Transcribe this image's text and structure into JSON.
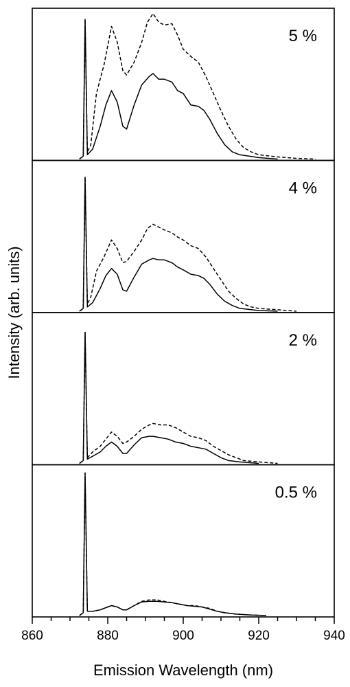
{
  "chart_data": {
    "type": "line",
    "xlabel": "Emission Wavelength (nm)",
    "ylabel": "Intensity (arb. units)",
    "xlim": [
      860,
      940
    ],
    "x_ticks": [
      "860",
      "880",
      "900",
      "920",
      "940"
    ],
    "x_minor_step": 5,
    "line_styles": [
      "dashed",
      "solid"
    ],
    "grid": false,
    "panels": [
      {
        "label": "5 %",
        "series": [
          {
            "style": "dashed",
            "points": [
              [
                872.5,
                0
              ],
              [
                873.5,
                0.02
              ],
              [
                874,
                0.98
              ],
              [
                874.6,
                0.05
              ],
              [
                875.5,
                0.1
              ],
              [
                877,
                0.46
              ],
              [
                879,
                0.66
              ],
              [
                881,
                0.93
              ],
              [
                882.5,
                0.82
              ],
              [
                884,
                0.62
              ],
              [
                885,
                0.59
              ],
              [
                887,
                0.68
              ],
              [
                889,
                0.82
              ],
              [
                890.5,
                0.96
              ],
              [
                892,
                1.02
              ],
              [
                893.5,
                0.96
              ],
              [
                895,
                0.94
              ],
              [
                897,
                0.95
              ],
              [
                898.5,
                0.87
              ],
              [
                900,
                0.77
              ],
              [
                902,
                0.72
              ],
              [
                904,
                0.68
              ],
              [
                906,
                0.58
              ],
              [
                908,
                0.46
              ],
              [
                910,
                0.34
              ],
              [
                912,
                0.23
              ],
              [
                914,
                0.14
              ],
              [
                916,
                0.08
              ],
              [
                918,
                0.05
              ],
              [
                920,
                0.03
              ],
              [
                925,
                0.015
              ],
              [
                930,
                0.005
              ],
              [
                935,
                0
              ]
            ]
          },
          {
            "style": "solid",
            "points": [
              [
                872.5,
                0
              ],
              [
                873.5,
                0.02
              ],
              [
                874,
                0.98
              ],
              [
                874.6,
                0.03
              ],
              [
                876,
                0.07
              ],
              [
                878,
                0.23
              ],
              [
                879.5,
                0.38
              ],
              [
                881,
                0.48
              ],
              [
                882.5,
                0.4
              ],
              [
                884,
                0.23
              ],
              [
                885,
                0.21
              ],
              [
                887,
                0.38
              ],
              [
                889,
                0.52
              ],
              [
                891,
                0.58
              ],
              [
                892,
                0.6
              ],
              [
                893.5,
                0.56
              ],
              [
                895,
                0.56
              ],
              [
                897,
                0.54
              ],
              [
                898.5,
                0.48
              ],
              [
                900,
                0.46
              ],
              [
                902,
                0.38
              ],
              [
                904,
                0.37
              ],
              [
                905.5,
                0.34
              ],
              [
                907,
                0.28
              ],
              [
                909,
                0.18
              ],
              [
                911,
                0.1
              ],
              [
                913,
                0.05
              ],
              [
                915,
                0.03
              ],
              [
                920,
                0.01
              ],
              [
                925,
                0
              ]
            ]
          }
        ]
      },
      {
        "label": "4 %",
        "series": [
          {
            "style": "dashed",
            "points": [
              [
                872.5,
                0
              ],
              [
                873.5,
                0.02
              ],
              [
                874,
                0.94
              ],
              [
                874.6,
                0.05
              ],
              [
                875.5,
                0.1
              ],
              [
                877,
                0.28
              ],
              [
                879,
                0.38
              ],
              [
                881,
                0.5
              ],
              [
                882.5,
                0.44
              ],
              [
                884,
                0.34
              ],
              [
                885,
                0.35
              ],
              [
                887,
                0.42
              ],
              [
                889,
                0.5
              ],
              [
                890.5,
                0.58
              ],
              [
                892,
                0.61
              ],
              [
                893.5,
                0.59
              ],
              [
                895,
                0.57
              ],
              [
                897,
                0.55
              ],
              [
                898.5,
                0.52
              ],
              [
                900,
                0.5
              ],
              [
                902,
                0.46
              ],
              [
                904,
                0.44
              ],
              [
                906,
                0.38
              ],
              [
                908,
                0.3
              ],
              [
                910,
                0.22
              ],
              [
                912,
                0.14
              ],
              [
                914,
                0.09
              ],
              [
                916,
                0.05
              ],
              [
                918,
                0.03
              ],
              [
                920,
                0.02
              ],
              [
                925,
                0.01
              ],
              [
                930,
                0
              ]
            ]
          },
          {
            "style": "solid",
            "points": [
              [
                872.5,
                0
              ],
              [
                873.5,
                0.02
              ],
              [
                874,
                0.94
              ],
              [
                874.6,
                0.03
              ],
              [
                876,
                0.06
              ],
              [
                878,
                0.16
              ],
              [
                879.5,
                0.25
              ],
              [
                881,
                0.3
              ],
              [
                882.5,
                0.26
              ],
              [
                884,
                0.15
              ],
              [
                885,
                0.14
              ],
              [
                887,
                0.24
              ],
              [
                889,
                0.33
              ],
              [
                891,
                0.36
              ],
              [
                892,
                0.37
              ],
              [
                893.5,
                0.36
              ],
              [
                895,
                0.36
              ],
              [
                897,
                0.34
              ],
              [
                898.5,
                0.31
              ],
              [
                900,
                0.29
              ],
              [
                902,
                0.26
              ],
              [
                904,
                0.25
              ],
              [
                905.5,
                0.23
              ],
              [
                907,
                0.19
              ],
              [
                909,
                0.12
              ],
              [
                911,
                0.07
              ],
              [
                913,
                0.04
              ],
              [
                915,
                0.02
              ],
              [
                920,
                0.005
              ],
              [
                925,
                0
              ]
            ]
          }
        ]
      },
      {
        "label": "2 %",
        "series": [
          {
            "style": "dashed",
            "points": [
              [
                872.5,
                0
              ],
              [
                873.5,
                0.02
              ],
              [
                874,
                0.92
              ],
              [
                874.6,
                0.04
              ],
              [
                876,
                0.08
              ],
              [
                878,
                0.12
              ],
              [
                879.5,
                0.17
              ],
              [
                881,
                0.22
              ],
              [
                882.5,
                0.19
              ],
              [
                884,
                0.14
              ],
              [
                885,
                0.15
              ],
              [
                887,
                0.19
              ],
              [
                889,
                0.24
              ],
              [
                891,
                0.27
              ],
              [
                892,
                0.28
              ],
              [
                894,
                0.27
              ],
              [
                896,
                0.27
              ],
              [
                898,
                0.25
              ],
              [
                900,
                0.22
              ],
              [
                902,
                0.19
              ],
              [
                904,
                0.18
              ],
              [
                906,
                0.16
              ],
              [
                908,
                0.12
              ],
              [
                910,
                0.09
              ],
              [
                912,
                0.06
              ],
              [
                914,
                0.04
              ],
              [
                916,
                0.02
              ],
              [
                920,
                0.01
              ],
              [
                925,
                0
              ]
            ]
          },
          {
            "style": "solid",
            "points": [
              [
                872.5,
                0
              ],
              [
                873.5,
                0.02
              ],
              [
                874,
                0.92
              ],
              [
                874.6,
                0.03
              ],
              [
                876,
                0.05
              ],
              [
                878,
                0.08
              ],
              [
                879.5,
                0.12
              ],
              [
                881,
                0.15
              ],
              [
                882.5,
                0.12
              ],
              [
                884,
                0.07
              ],
              [
                885,
                0.07
              ],
              [
                887,
                0.13
              ],
              [
                889,
                0.18
              ],
              [
                891,
                0.19
              ],
              [
                892,
                0.19
              ],
              [
                894,
                0.18
              ],
              [
                896,
                0.17
              ],
              [
                898,
                0.15
              ],
              [
                900,
                0.14
              ],
              [
                902,
                0.12
              ],
              [
                904,
                0.11
              ],
              [
                906,
                0.1
              ],
              [
                908,
                0.07
              ],
              [
                910,
                0.04
              ],
              [
                912,
                0.02
              ],
              [
                915,
                0.01
              ],
              [
                920,
                0
              ]
            ]
          }
        ]
      },
      {
        "label": "0.5 %",
        "series": [
          {
            "style": "dashed",
            "points": [
              [
                872.5,
                0
              ],
              [
                873.5,
                0.02
              ],
              [
                874,
                1.0
              ],
              [
                874.6,
                0.03
              ],
              [
                876,
                0.03
              ],
              [
                878,
                0.04
              ],
              [
                880,
                0.06
              ],
              [
                881,
                0.07
              ],
              [
                882.5,
                0.06
              ],
              [
                884,
                0.04
              ],
              [
                885,
                0.04
              ],
              [
                887,
                0.07
              ],
              [
                889,
                0.1
              ],
              [
                891,
                0.11
              ],
              [
                893,
                0.11
              ],
              [
                895,
                0.1
              ],
              [
                897,
                0.09
              ],
              [
                899,
                0.08
              ],
              [
                901,
                0.07
              ],
              [
                903,
                0.07
              ],
              [
                905,
                0.06
              ],
              [
                907,
                0.05
              ],
              [
                909,
                0.03
              ],
              [
                911,
                0.02
              ],
              [
                914,
                0.01
              ],
              [
                918,
                0.004
              ],
              [
                922,
                0
              ]
            ]
          },
          {
            "style": "solid",
            "points": [
              [
                872.5,
                0
              ],
              [
                873.5,
                0.02
              ],
              [
                874,
                1.0
              ],
              [
                874.6,
                0.03
              ],
              [
                876,
                0.03
              ],
              [
                878,
                0.04
              ],
              [
                880,
                0.06
              ],
              [
                881,
                0.07
              ],
              [
                882.5,
                0.06
              ],
              [
                884,
                0.04
              ],
              [
                885,
                0.04
              ],
              [
                887,
                0.07
              ],
              [
                889,
                0.095
              ],
              [
                891,
                0.1
              ],
              [
                893,
                0.1
              ],
              [
                895,
                0.095
              ],
              [
                897,
                0.09
              ],
              [
                899,
                0.08
              ],
              [
                901,
                0.07
              ],
              [
                903,
                0.065
              ],
              [
                905,
                0.06
              ],
              [
                907,
                0.045
              ],
              [
                909,
                0.03
              ],
              [
                911,
                0.02
              ],
              [
                914,
                0.01
              ],
              [
                918,
                0.004
              ],
              [
                922,
                0
              ]
            ]
          }
        ]
      }
    ]
  }
}
